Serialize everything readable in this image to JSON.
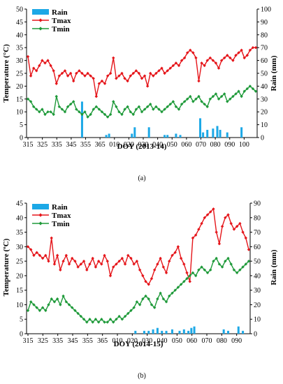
{
  "chart_data": [
    {
      "type": "line",
      "panel_label": "(a)",
      "xlabel": "DOY (2013-14)",
      "ylabel": "Temperature (°C)",
      "y2label": "Rain (mm)",
      "x_tick_labels": [
        "315",
        "325",
        "335",
        "345",
        "355",
        "365",
        "010",
        "020",
        "030",
        "040",
        "050",
        "060",
        "070",
        "080",
        "090",
        "100"
      ],
      "ylim": [
        0,
        50
      ],
      "y_ticks": [
        0,
        5,
        10,
        15,
        20,
        25,
        30,
        35,
        40,
        45,
        50
      ],
      "y2lim": [
        0,
        100
      ],
      "y2_ticks": [
        0,
        10,
        20,
        30,
        40,
        50,
        60,
        70,
        80,
        90,
        100
      ],
      "legend": [
        "Rain",
        "Tmax",
        "Tmin"
      ],
      "legend_position": "top-left",
      "colors": {
        "Rain": "#1ca8e6",
        "Tmax": "#e5151a",
        "Tmin": "#1f9a3a"
      },
      "series": [
        {
          "name": "Tmax",
          "kind": "line",
          "axis": "left",
          "x": [
            0,
            2,
            4,
            6,
            8,
            10,
            12,
            14,
            16,
            18,
            20,
            22,
            24,
            26,
            28,
            30,
            32,
            34,
            36,
            38,
            40,
            42,
            44,
            46,
            48,
            50,
            52,
            54,
            56,
            58,
            60,
            62,
            64,
            66,
            68,
            70,
            72,
            74,
            76,
            78,
            80,
            82,
            84,
            86,
            88,
            90,
            92,
            94,
            96,
            98,
            100,
            102,
            104,
            106,
            108,
            110,
            112,
            114,
            116,
            118,
            120,
            122,
            124,
            126,
            128,
            130,
            132,
            134,
            136,
            138,
            140,
            142,
            144,
            146,
            148,
            150,
            152,
            154,
            156,
            158,
            160
          ],
          "values": [
            31.5,
            24,
            27,
            26,
            28,
            30,
            29,
            30,
            28,
            26,
            21,
            24,
            25,
            26,
            24,
            25,
            22,
            25,
            26,
            25,
            24,
            25,
            24,
            23,
            16,
            21,
            22,
            21,
            24,
            25,
            31,
            23,
            24,
            25,
            23,
            22,
            24,
            25,
            26,
            25,
            23,
            24,
            20,
            25,
            24,
            25,
            26,
            27,
            25,
            26,
            27,
            28,
            29,
            28,
            30,
            31,
            33,
            34,
            33,
            31,
            22,
            29,
            28,
            30,
            31,
            30,
            29,
            27,
            30,
            31,
            32,
            31,
            30,
            32,
            33,
            34,
            31,
            32,
            34,
            35,
            35
          ]
        },
        {
          "name": "Tmin",
          "kind": "line",
          "axis": "left",
          "x": [
            0,
            2,
            4,
            6,
            8,
            10,
            12,
            14,
            16,
            18,
            20,
            22,
            24,
            26,
            28,
            30,
            32,
            34,
            36,
            38,
            40,
            42,
            44,
            46,
            48,
            50,
            52,
            54,
            56,
            58,
            60,
            62,
            64,
            66,
            68,
            70,
            72,
            74,
            76,
            78,
            80,
            82,
            84,
            86,
            88,
            90,
            92,
            94,
            96,
            98,
            100,
            102,
            104,
            106,
            108,
            110,
            112,
            114,
            116,
            118,
            120,
            122,
            124,
            126,
            128,
            130,
            132,
            134,
            136,
            138,
            140,
            142,
            144,
            146,
            148,
            150,
            152,
            154,
            156,
            158,
            160
          ],
          "values": [
            15,
            14,
            12,
            11,
            10,
            11,
            9,
            10,
            10,
            9,
            16,
            12,
            11,
            10,
            12,
            13,
            14,
            11,
            10,
            9,
            10,
            8,
            9,
            11,
            12,
            11,
            10,
            9,
            8,
            9,
            14,
            12,
            10,
            9,
            11,
            12,
            10,
            9,
            11,
            12,
            10,
            11,
            12,
            13,
            11,
            12,
            11,
            10,
            11,
            12,
            13,
            14,
            12,
            11,
            13,
            14,
            15,
            16,
            14,
            15,
            16,
            14,
            13,
            12,
            15,
            16,
            17,
            15,
            16,
            17,
            14,
            15,
            16,
            17,
            18,
            16,
            18,
            19,
            20,
            19,
            18
          ]
        },
        {
          "name": "Rain",
          "kind": "bar",
          "axis": "right",
          "x": [
            38,
            55,
            57,
            73,
            75,
            85,
            96,
            98,
            104,
            107,
            121,
            123,
            126,
            130,
            133,
            135,
            140,
            150
          ],
          "values": [
            28,
            2,
            3,
            3,
            8,
            8,
            2,
            2,
            3,
            2,
            15,
            4,
            6,
            7,
            9,
            6,
            4,
            8
          ]
        }
      ]
    },
    {
      "type": "line",
      "panel_label": "(b)",
      "xlabel": "DOY (2014-15)",
      "ylabel": "Temperature (ºC)",
      "y2label": "Rain (mm)",
      "x_tick_labels": [
        "315",
        "325",
        "335",
        "345",
        "355",
        "365",
        "010",
        "020",
        "030",
        "040",
        "050",
        "060",
        "070",
        "080",
        "090"
      ],
      "ylim": [
        0,
        45
      ],
      "y_ticks": [
        0,
        5,
        10,
        15,
        20,
        25,
        30,
        35,
        40,
        45
      ],
      "y2lim": [
        0,
        90
      ],
      "y2_ticks": [
        0,
        10,
        20,
        30,
        40,
        50,
        60,
        70,
        80,
        90
      ],
      "legend": [
        "Rain",
        "Tmax",
        "Tmin"
      ],
      "legend_position": "top-left",
      "colors": {
        "Rain": "#1ca8e6",
        "Tmax": "#e5151a",
        "Tmin": "#1f9a3a"
      },
      "series": [
        {
          "name": "Tmax",
          "kind": "line",
          "axis": "left",
          "x": [
            0,
            2,
            4,
            6,
            8,
            10,
            12,
            14,
            16,
            18,
            20,
            22,
            24,
            26,
            28,
            30,
            32,
            34,
            36,
            38,
            40,
            42,
            44,
            46,
            48,
            50,
            52,
            54,
            56,
            58,
            60,
            62,
            64,
            66,
            68,
            70,
            72,
            74,
            76,
            78,
            80,
            82,
            84,
            86,
            88,
            90,
            92,
            94,
            96,
            98,
            100,
            102,
            104,
            106,
            108,
            110,
            112,
            114,
            116,
            118,
            120,
            122,
            124,
            126,
            128,
            130,
            132,
            134,
            136,
            138,
            140,
            142,
            144,
            146,
            148,
            150
          ],
          "values": [
            30,
            29,
            27,
            28,
            27,
            26,
            27,
            25,
            33,
            24,
            27,
            22,
            25,
            27,
            24,
            26,
            25,
            23,
            24,
            25,
            22,
            24,
            26,
            23,
            25,
            24,
            27,
            25,
            20,
            23,
            24,
            25,
            26,
            24,
            27,
            26,
            24,
            25,
            22,
            20,
            18,
            17,
            19,
            22,
            24,
            26,
            23,
            21,
            25,
            27,
            28,
            30,
            26,
            24,
            21,
            18,
            33,
            34,
            36,
            38,
            40,
            41,
            42,
            43,
            35,
            31,
            37,
            40,
            41,
            38,
            36,
            37,
            38,
            35,
            33,
            29
          ]
        },
        {
          "name": "Tmin",
          "kind": "line",
          "axis": "left",
          "x": [
            0,
            2,
            4,
            6,
            8,
            10,
            12,
            14,
            16,
            18,
            20,
            22,
            24,
            26,
            28,
            30,
            32,
            34,
            36,
            38,
            40,
            42,
            44,
            46,
            48,
            50,
            52,
            54,
            56,
            58,
            60,
            62,
            64,
            66,
            68,
            70,
            72,
            74,
            76,
            78,
            80,
            82,
            84,
            86,
            88,
            90,
            92,
            94,
            96,
            98,
            100,
            102,
            104,
            106,
            108,
            110,
            112,
            114,
            116,
            118,
            120,
            122,
            124,
            126,
            128,
            130,
            132,
            134,
            136,
            138,
            140,
            142,
            144,
            146,
            148,
            150
          ],
          "values": [
            8,
            11,
            10,
            9,
            8,
            9,
            8,
            10,
            12,
            11,
            12,
            10,
            13,
            11,
            10,
            9,
            8,
            7,
            6,
            5,
            4,
            5,
            4,
            5,
            4,
            5,
            4,
            4,
            5,
            4,
            5,
            6,
            5,
            6,
            7,
            8,
            9,
            11,
            10,
            12,
            13,
            12,
            10,
            9,
            12,
            14,
            12,
            11,
            13,
            14,
            15,
            16,
            17,
            18,
            19,
            20,
            21,
            20,
            22,
            23,
            22,
            21,
            22,
            25,
            26,
            24,
            23,
            25,
            26,
            24,
            22,
            21,
            22,
            23,
            24,
            25
          ]
        },
        {
          "name": "Rain",
          "kind": "bar",
          "axis": "right",
          "x": [
            73,
            79,
            82,
            85,
            88,
            91,
            94,
            98,
            103,
            106,
            109,
            111,
            113,
            133,
            136,
            143,
            146
          ],
          "values": [
            2,
            2,
            2,
            3,
            4,
            2,
            2,
            3,
            2,
            3,
            2,
            4,
            5,
            3,
            2,
            5,
            2
          ]
        }
      ]
    }
  ]
}
